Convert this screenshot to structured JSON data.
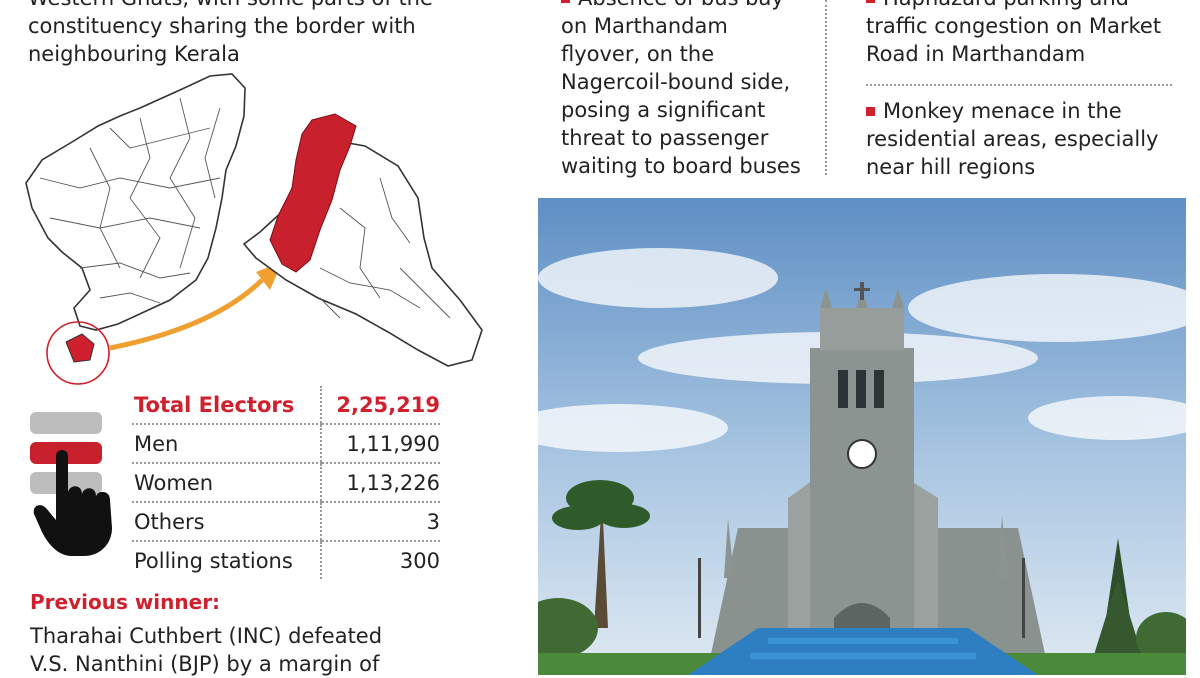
{
  "intro_lines": [
    "Western Ghats, with some parts of the",
    "constituency sharing the border with",
    "neighbouring Kerala"
  ],
  "issues": [
    {
      "lines": [
        "Absence of bus bay",
        "on Marthandam",
        "flyover, on the",
        "Nagercoil-bound side,",
        "posing a significant",
        "threat to passenger",
        "waiting to board buses"
      ]
    },
    {
      "lines": [
        "Haphazard parking and",
        "traffic congestion on Market",
        "Road in Marthandam"
      ]
    },
    {
      "lines": [
        "Monkey menace in the",
        "residential areas, especially",
        "near hill regions"
      ]
    }
  ],
  "stats": [
    {
      "label": "Total Electors",
      "value": "2,25,219"
    },
    {
      "label": "Men",
      "value": "1,11,990"
    },
    {
      "label": "Women",
      "value": "1,13,226"
    },
    {
      "label": "Others",
      "value": "3"
    },
    {
      "label": "Polling stations",
      "value": "300"
    }
  ],
  "previous_winner": {
    "title": "Previous winner:",
    "lines": [
      "Tharahai Cuthbert (INC) defeated",
      "V.S. Nanthini (BJP) by a margin of"
    ]
  },
  "icons": {
    "map": "tamil-nadu-constituency-map",
    "voting": "voting-hand-icon",
    "bullet": "red-square-bullet"
  },
  "colors": {
    "accent": "#d0202e",
    "arrow": "#f0a030",
    "text": "#222222"
  }
}
